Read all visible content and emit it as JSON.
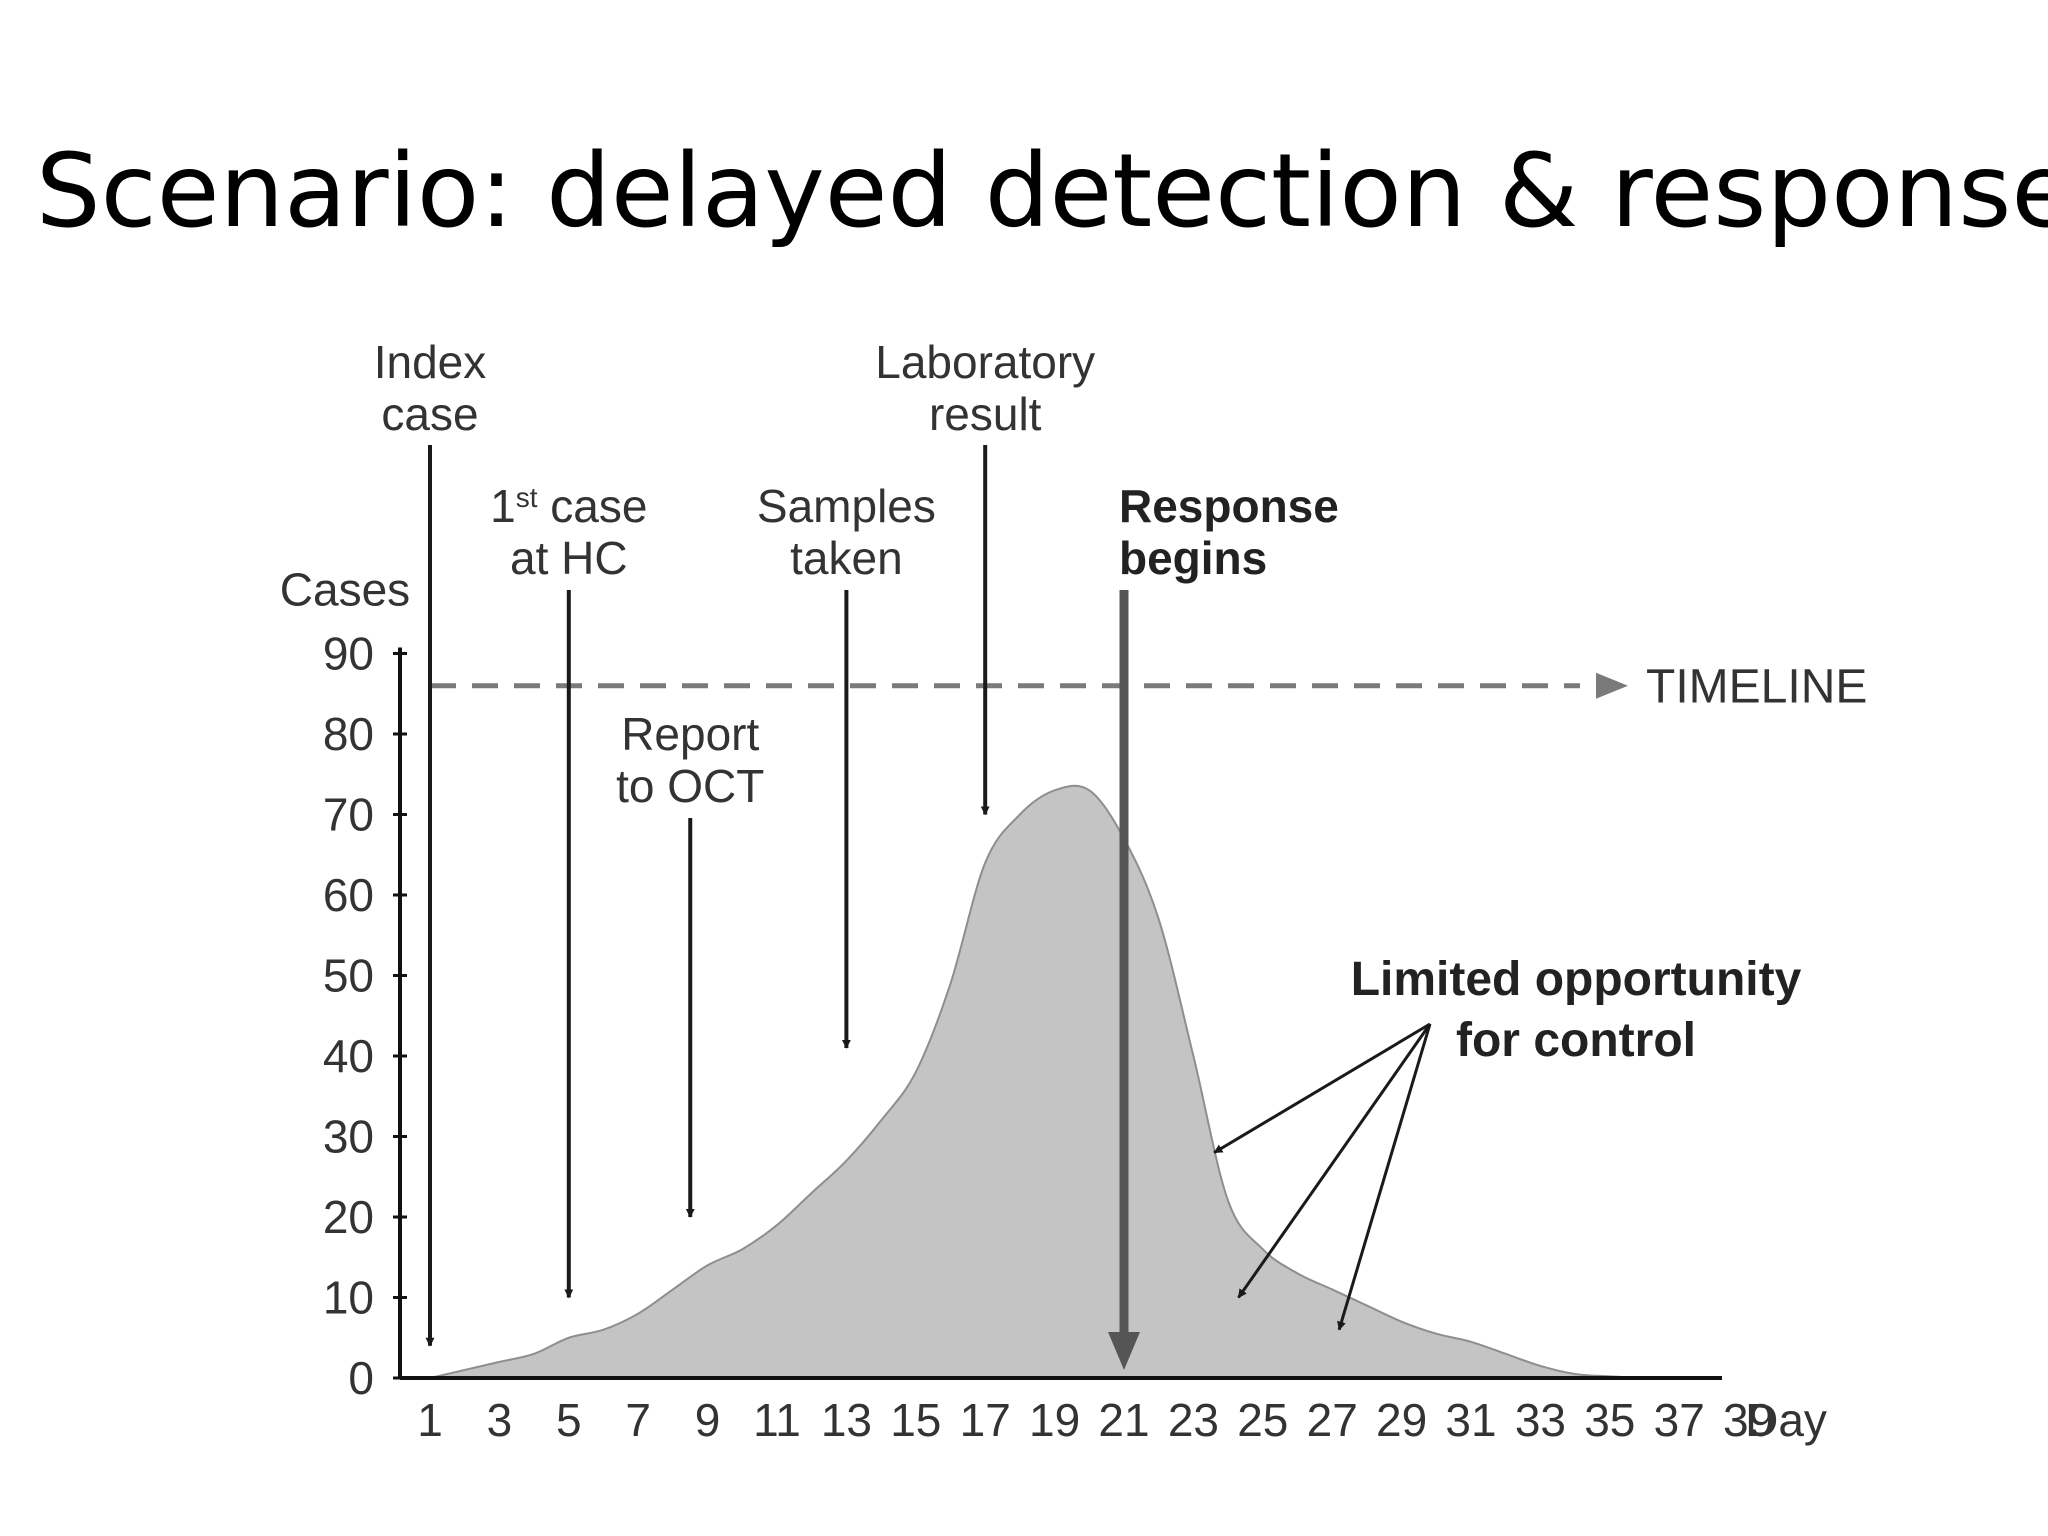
{
  "slide": {
    "title": "Scenario: delayed detection & response"
  },
  "chart_data": {
    "type": "area",
    "ylabel": "Cases",
    "xlabel": "Day",
    "ylim": [
      0,
      90
    ],
    "xlim": [
      1,
      39
    ],
    "y_ticks": [
      0,
      10,
      20,
      30,
      40,
      50,
      60,
      70,
      80,
      90
    ],
    "x_ticks": [
      1,
      3,
      5,
      7,
      9,
      11,
      13,
      15,
      17,
      19,
      21,
      23,
      25,
      27,
      29,
      31,
      33,
      35,
      37,
      39
    ],
    "series": [
      {
        "x": [
          1,
          2,
          3,
          4,
          5,
          6,
          7,
          8,
          9,
          10,
          11,
          12,
          13,
          14,
          15,
          16,
          17,
          18,
          19,
          20,
          21,
          22,
          23,
          24,
          25,
          26,
          27,
          28,
          29,
          30,
          31,
          32,
          33,
          34,
          35,
          36
        ],
        "values": [
          0,
          1,
          2,
          3,
          5,
          6,
          8,
          11,
          14,
          16,
          19,
          23,
          27,
          32,
          38,
          49,
          64,
          70,
          73,
          73,
          67,
          57,
          40,
          22,
          16,
          13,
          11,
          9,
          7,
          5.5,
          4.5,
          3,
          1.5,
          0.5,
          0.2,
          0
        ]
      }
    ],
    "timeline": {
      "label": "TIMELINE",
      "y": 86
    },
    "events": [
      {
        "line1": "Index",
        "line2": "case",
        "line2_sup": "",
        "day": 1,
        "arrow_end": 4
      },
      {
        "line1": "1",
        "line1_sup": "st",
        "line1_rest": " case",
        "line2": "at HC",
        "day": 5,
        "arrow_end": 10
      },
      {
        "line1": "Report",
        "line2": "to OCT",
        "day": 8.5,
        "arrow_end": 20
      },
      {
        "line1": "Samples",
        "line2": "taken",
        "day": 13,
        "arrow_end": 41
      },
      {
        "line1": "Laboratory",
        "line2": "result",
        "day": 17,
        "arrow_end": 70
      },
      {
        "line1": "Response",
        "line2": "begins",
        "day": 21,
        "arrow_end": 1
      }
    ],
    "annotation": {
      "line1": "Limited opportunity",
      "line2": "for control"
    }
  }
}
